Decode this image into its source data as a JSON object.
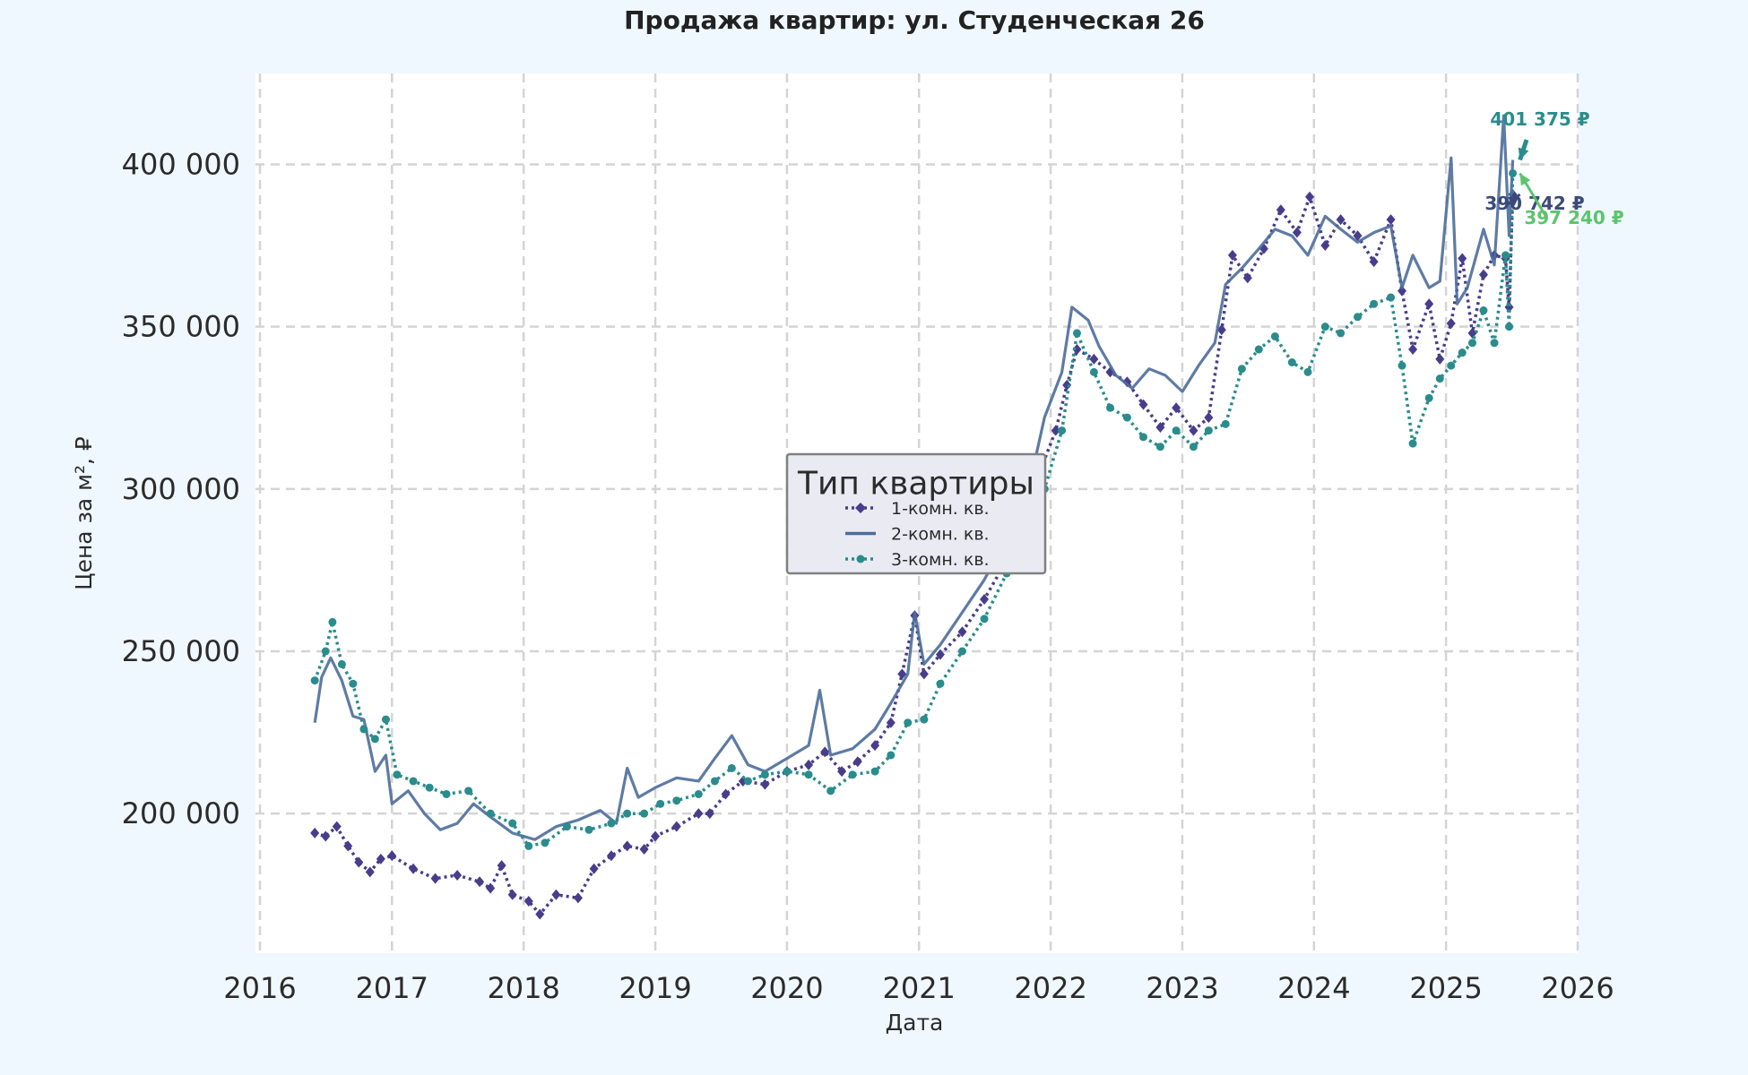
{
  "chart_data": {
    "type": "line",
    "title": "Продажа квартир: ул. Студенческая 26",
    "xlabel": "Дата",
    "ylabel": "Цена за м², ₽",
    "xlim": [
      "2016-01-01",
      "2026-01-01"
    ],
    "ylim": [
      157000,
      428000
    ],
    "x_ticks": [
      "2016",
      "2017",
      "2018",
      "2019",
      "2020",
      "2021",
      "2022",
      "2023",
      "2024",
      "2025",
      "2026"
    ],
    "y_ticks": [
      200000,
      250000,
      300000,
      350000,
      400000
    ],
    "y_tick_labels": [
      "200 000",
      "250 000",
      "300 000",
      "350 000",
      "400 000"
    ],
    "grid": true,
    "legend": {
      "title": "Тип квартиры",
      "position": "center"
    },
    "series": [
      {
        "name": "1-комн. кв.",
        "color": "#483d8b",
        "style": "dotted-diamond",
        "points": [
          [
            "2016-06-01",
            194000
          ],
          [
            "2016-07-01",
            193000
          ],
          [
            "2016-08-01",
            196000
          ],
          [
            "2016-09-01",
            190000
          ],
          [
            "2016-10-01",
            185000
          ],
          [
            "2016-11-01",
            182000
          ],
          [
            "2016-12-01",
            186000
          ],
          [
            "2017-01-01",
            187000
          ],
          [
            "2017-03-01",
            183000
          ],
          [
            "2017-05-01",
            180000
          ],
          [
            "2017-07-01",
            181000
          ],
          [
            "2017-09-01",
            179000
          ],
          [
            "2017-10-01",
            177000
          ],
          [
            "2017-11-01",
            184000
          ],
          [
            "2017-12-01",
            175000
          ],
          [
            "2018-01-15",
            173000
          ],
          [
            "2018-02-15",
            169000
          ],
          [
            "2018-04-01",
            175000
          ],
          [
            "2018-06-01",
            174000
          ],
          [
            "2018-07-15",
            183000
          ],
          [
            "2018-09-01",
            187000
          ],
          [
            "2018-10-15",
            190000
          ],
          [
            "2018-12-01",
            189000
          ],
          [
            "2019-01-01",
            193000
          ],
          [
            "2019-03-01",
            196000
          ],
          [
            "2019-05-01",
            200000
          ],
          [
            "2019-06-01",
            200000
          ],
          [
            "2019-07-15",
            206000
          ],
          [
            "2019-09-01",
            210000
          ],
          [
            "2019-11-01",
            209000
          ],
          [
            "2020-01-01",
            213000
          ],
          [
            "2020-03-01",
            215000
          ],
          [
            "2020-04-15",
            219000
          ],
          [
            "2020-06-01",
            213000
          ],
          [
            "2020-07-15",
            216000
          ],
          [
            "2020-09-01",
            221000
          ],
          [
            "2020-10-15",
            228000
          ],
          [
            "2020-11-15",
            243000
          ],
          [
            "2020-12-20",
            261000
          ],
          [
            "2021-01-15",
            243000
          ],
          [
            "2021-03-01",
            249000
          ],
          [
            "2021-05-01",
            256000
          ],
          [
            "2021-07-01",
            266000
          ],
          [
            "2021-09-01",
            278000
          ],
          [
            "2021-10-15",
            290000
          ],
          [
            "2021-12-01",
            305000
          ],
          [
            "2022-01-15",
            318000
          ],
          [
            "2022-02-15",
            332000
          ],
          [
            "2022-03-15",
            343000
          ],
          [
            "2022-05-01",
            340000
          ],
          [
            "2022-06-15",
            336000
          ],
          [
            "2022-08-01",
            333000
          ],
          [
            "2022-09-15",
            326000
          ],
          [
            "2022-11-01",
            319000
          ],
          [
            "2022-12-15",
            325000
          ],
          [
            "2023-02-01",
            318000
          ],
          [
            "2023-03-15",
            322000
          ],
          [
            "2023-04-20",
            349000
          ],
          [
            "2023-05-20",
            372000
          ],
          [
            "2023-07-01",
            365000
          ],
          [
            "2023-08-15",
            374000
          ],
          [
            "2023-10-01",
            386000
          ],
          [
            "2023-11-15",
            379000
          ],
          [
            "2023-12-20",
            390000
          ],
          [
            "2024-02-01",
            375000
          ],
          [
            "2024-03-15",
            383000
          ],
          [
            "2024-05-01",
            378000
          ],
          [
            "2024-06-15",
            370000
          ],
          [
            "2024-08-01",
            383000
          ],
          [
            "2024-09-01",
            361000
          ],
          [
            "2024-10-01",
            343000
          ],
          [
            "2024-11-15",
            357000
          ],
          [
            "2024-12-15",
            340000
          ],
          [
            "2025-01-15",
            351000
          ],
          [
            "2025-02-15",
            371000
          ],
          [
            "2025-03-15",
            348000
          ],
          [
            "2025-04-15",
            366000
          ],
          [
            "2025-05-15",
            372000
          ],
          [
            "2025-06-15",
            371000
          ],
          [
            "2025-06-25",
            356000
          ],
          [
            "2025-07-05",
            390742
          ]
        ]
      },
      {
        "name": "2-комн. кв.",
        "color": "#4c6d9a",
        "style": "solid",
        "points": [
          [
            "2016-06-01",
            228000
          ],
          [
            "2016-06-20",
            242000
          ],
          [
            "2016-07-15",
            248000
          ],
          [
            "2016-08-15",
            241000
          ],
          [
            "2016-09-15",
            230000
          ],
          [
            "2016-10-15",
            229000
          ],
          [
            "2016-11-15",
            213000
          ],
          [
            "2016-12-15",
            218000
          ],
          [
            "2017-01-01",
            203000
          ],
          [
            "2017-02-15",
            207000
          ],
          [
            "2017-04-01",
            200000
          ],
          [
            "2017-05-15",
            195000
          ],
          [
            "2017-07-01",
            197000
          ],
          [
            "2017-08-15",
            203000
          ],
          [
            "2017-10-01",
            199000
          ],
          [
            "2017-12-01",
            194000
          ],
          [
            "2018-02-01",
            192000
          ],
          [
            "2018-04-01",
            196000
          ],
          [
            "2018-06-01",
            198000
          ],
          [
            "2018-08-01",
            201000
          ],
          [
            "2018-09-15",
            197000
          ],
          [
            "2018-10-15",
            214000
          ],
          [
            "2018-11-15",
            205000
          ],
          [
            "2019-01-01",
            208000
          ],
          [
            "2019-03-01",
            211000
          ],
          [
            "2019-05-01",
            210000
          ],
          [
            "2019-06-15",
            217000
          ],
          [
            "2019-08-01",
            224000
          ],
          [
            "2019-09-15",
            215000
          ],
          [
            "2019-11-01",
            213000
          ],
          [
            "2020-01-01",
            217000
          ],
          [
            "2020-03-01",
            221000
          ],
          [
            "2020-04-01",
            238000
          ],
          [
            "2020-05-01",
            218000
          ],
          [
            "2020-07-01",
            220000
          ],
          [
            "2020-09-01",
            226000
          ],
          [
            "2020-10-15",
            234000
          ],
          [
            "2020-12-01",
            243000
          ],
          [
            "2020-12-20",
            262000
          ],
          [
            "2021-01-15",
            246000
          ],
          [
            "2021-03-01",
            252000
          ],
          [
            "2021-05-01",
            262000
          ],
          [
            "2021-07-01",
            272000
          ],
          [
            "2021-09-01",
            285000
          ],
          [
            "2021-11-01",
            300000
          ],
          [
            "2021-12-15",
            322000
          ],
          [
            "2022-02-01",
            336000
          ],
          [
            "2022-03-01",
            356000
          ],
          [
            "2022-04-15",
            352000
          ],
          [
            "2022-05-15",
            344000
          ],
          [
            "2022-07-01",
            335000
          ],
          [
            "2022-08-15",
            331000
          ],
          [
            "2022-10-01",
            337000
          ],
          [
            "2022-11-15",
            335000
          ],
          [
            "2023-01-01",
            330000
          ],
          [
            "2023-02-15",
            338000
          ],
          [
            "2023-04-01",
            345000
          ],
          [
            "2023-05-01",
            363000
          ],
          [
            "2023-06-15",
            368000
          ],
          [
            "2023-08-01",
            374000
          ],
          [
            "2023-09-15",
            380000
          ],
          [
            "2023-11-01",
            378000
          ],
          [
            "2023-12-15",
            372000
          ],
          [
            "2024-02-01",
            384000
          ],
          [
            "2024-03-15",
            380000
          ],
          [
            "2024-05-01",
            376000
          ],
          [
            "2024-06-15",
            379000
          ],
          [
            "2024-08-01",
            381000
          ],
          [
            "2024-09-01",
            362000
          ],
          [
            "2024-10-01",
            372000
          ],
          [
            "2024-11-15",
            362000
          ],
          [
            "2024-12-15",
            364000
          ],
          [
            "2025-01-15",
            402000
          ],
          [
            "2025-02-01",
            357000
          ],
          [
            "2025-03-01",
            362000
          ],
          [
            "2025-04-15",
            380000
          ],
          [
            "2025-05-15",
            369000
          ],
          [
            "2025-06-10",
            415000
          ],
          [
            "2025-06-25",
            378000
          ],
          [
            "2025-07-05",
            401375
          ]
        ]
      },
      {
        "name": "3-комн. кв.",
        "color": "#2a8c8c",
        "style": "dotted-circle",
        "points": [
          [
            "2016-06-01",
            241000
          ],
          [
            "2016-07-01",
            250000
          ],
          [
            "2016-07-20",
            259000
          ],
          [
            "2016-08-15",
            246000
          ],
          [
            "2016-09-15",
            240000
          ],
          [
            "2016-10-15",
            226000
          ],
          [
            "2016-11-15",
            223000
          ],
          [
            "2016-12-15",
            229000
          ],
          [
            "2017-01-15",
            212000
          ],
          [
            "2017-03-01",
            210000
          ],
          [
            "2017-04-15",
            208000
          ],
          [
            "2017-06-01",
            206000
          ],
          [
            "2017-08-01",
            207000
          ],
          [
            "2017-10-01",
            200000
          ],
          [
            "2017-12-01",
            197000
          ],
          [
            "2018-01-15",
            190000
          ],
          [
            "2018-03-01",
            191000
          ],
          [
            "2018-05-01",
            196000
          ],
          [
            "2018-07-01",
            195000
          ],
          [
            "2018-09-01",
            197000
          ],
          [
            "2018-10-15",
            200000
          ],
          [
            "2018-12-01",
            200000
          ],
          [
            "2019-01-15",
            203000
          ],
          [
            "2019-03-01",
            204000
          ],
          [
            "2019-05-01",
            206000
          ],
          [
            "2019-06-15",
            210000
          ],
          [
            "2019-08-01",
            214000
          ],
          [
            "2019-09-15",
            210000
          ],
          [
            "2019-11-01",
            212000
          ],
          [
            "2020-01-01",
            213000
          ],
          [
            "2020-03-01",
            212000
          ],
          [
            "2020-05-01",
            207000
          ],
          [
            "2020-07-01",
            212000
          ],
          [
            "2020-09-01",
            213000
          ],
          [
            "2020-10-15",
            218000
          ],
          [
            "2020-12-01",
            228000
          ],
          [
            "2021-01-15",
            229000
          ],
          [
            "2021-03-01",
            240000
          ],
          [
            "2021-05-01",
            250000
          ],
          [
            "2021-07-01",
            260000
          ],
          [
            "2021-09-01",
            274000
          ],
          [
            "2021-11-01",
            283000
          ],
          [
            "2021-12-15",
            300000
          ],
          [
            "2022-02-01",
            318000
          ],
          [
            "2022-03-15",
            348000
          ],
          [
            "2022-05-01",
            336000
          ],
          [
            "2022-06-15",
            325000
          ],
          [
            "2022-08-01",
            322000
          ],
          [
            "2022-09-15",
            316000
          ],
          [
            "2022-11-01",
            313000
          ],
          [
            "2022-12-15",
            318000
          ],
          [
            "2023-02-01",
            313000
          ],
          [
            "2023-03-15",
            318000
          ],
          [
            "2023-05-01",
            320000
          ],
          [
            "2023-06-15",
            337000
          ],
          [
            "2023-08-01",
            343000
          ],
          [
            "2023-09-15",
            347000
          ],
          [
            "2023-11-01",
            339000
          ],
          [
            "2023-12-15",
            336000
          ],
          [
            "2024-02-01",
            350000
          ],
          [
            "2024-03-15",
            348000
          ],
          [
            "2024-05-01",
            353000
          ],
          [
            "2024-06-15",
            357000
          ],
          [
            "2024-08-01",
            359000
          ],
          [
            "2024-09-01",
            338000
          ],
          [
            "2024-10-01",
            314000
          ],
          [
            "2024-11-15",
            328000
          ],
          [
            "2024-12-15",
            334000
          ],
          [
            "2025-01-15",
            338000
          ],
          [
            "2025-02-15",
            342000
          ],
          [
            "2025-03-15",
            345000
          ],
          [
            "2025-04-15",
            355000
          ],
          [
            "2025-05-15",
            345000
          ],
          [
            "2025-06-15",
            372000
          ],
          [
            "2025-06-25",
            350000
          ],
          [
            "2025-07-05",
            397240
          ]
        ]
      }
    ],
    "annotations": [
      {
        "series": "2-комн. кв.",
        "date": "2025-07-05",
        "value": 401375,
        "text": "401 375 ₽",
        "color": "#2a8c8c"
      },
      {
        "series": "1-комн. кв.",
        "date": "2025-07-05",
        "value": 390742,
        "text": "390 742 ₽",
        "color": "#3b4a7a"
      },
      {
        "series": "3-комн. кв.",
        "date": "2025-07-05",
        "value": 397240,
        "text": "397 240 ₽",
        "color": "#5cc46e"
      }
    ]
  }
}
